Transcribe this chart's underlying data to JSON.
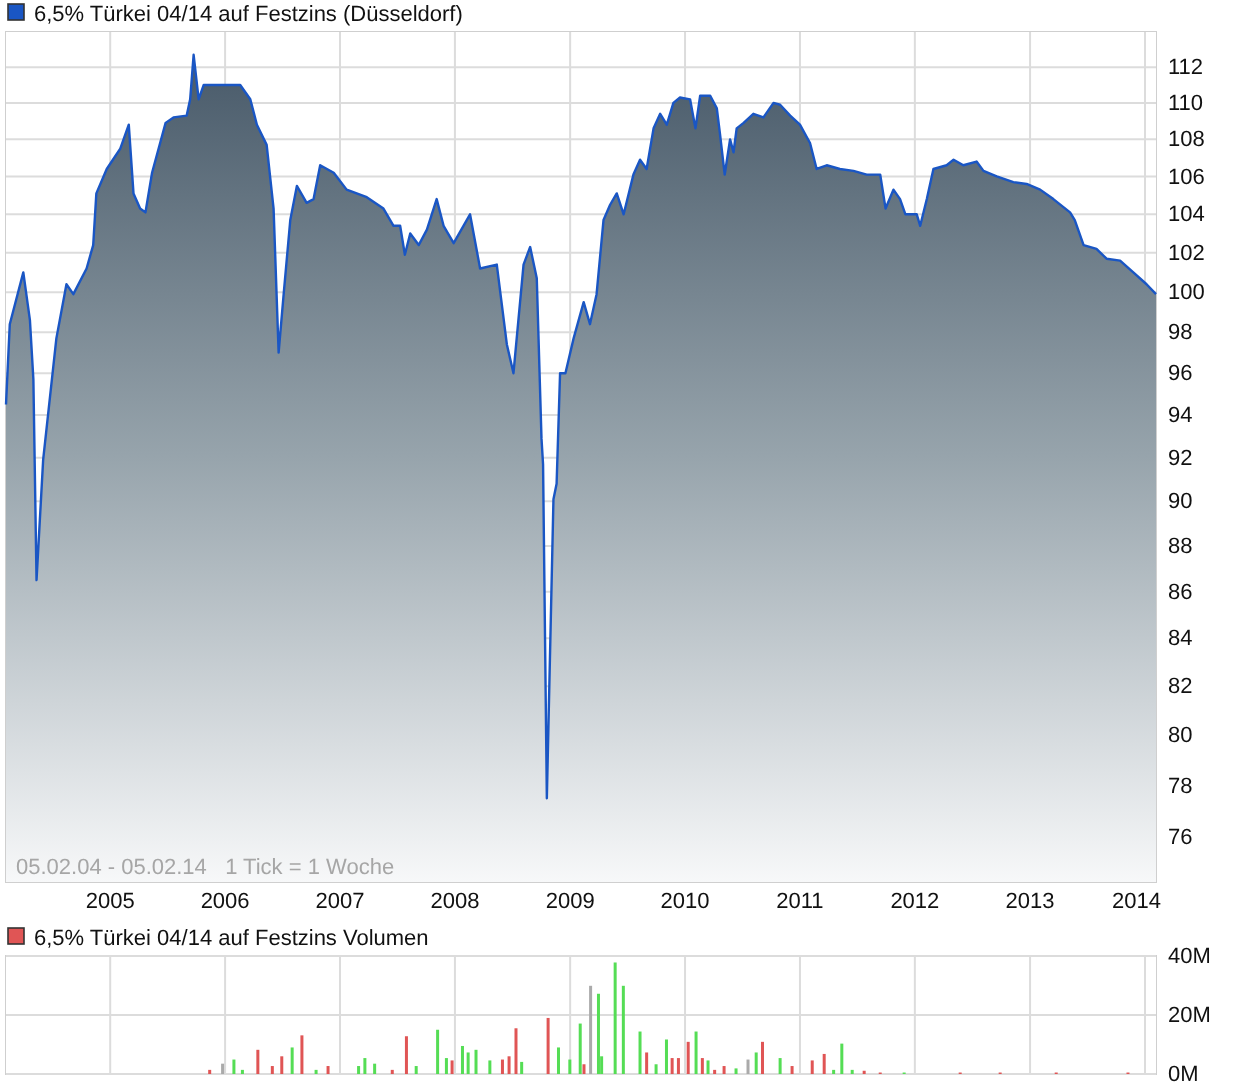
{
  "chart_data": [
    {
      "type": "area",
      "log": true,
      "grid": true,
      "legend": "top left",
      "xlim": [
        "2004-02-05",
        "2014-02-05"
      ],
      "ylim": [
        74.3,
        114
      ],
      "xticks": [
        "2005",
        "2006",
        "2007",
        "2008",
        "2009",
        "2010",
        "2011",
        "2012",
        "2013",
        "2014"
      ],
      "yticks": [
        76,
        78,
        80,
        82,
        84,
        86,
        88,
        90,
        92,
        94,
        96,
        98,
        100,
        102,
        104,
        106,
        108,
        110,
        112
      ],
      "annotations": [
        "05.02.04 - 05.02.14   1 Tick = 1 Woche"
      ],
      "x": [
        "2004-02-05",
        "2004-02-17",
        "2004-03-31",
        "2004-04-21",
        "2004-05-02",
        "2004-05-12",
        "2004-06-02",
        "2004-07-14",
        "2004-08-15",
        "2004-09-06",
        "2004-10-18",
        "2004-11-08",
        "2004-11-18",
        "2004-12-21",
        "2005-02-02",
        "2005-03-01",
        "2005-03-16",
        "2005-04-06",
        "2005-04-23",
        "2005-05-14",
        "2005-06-26",
        "2005-07-21",
        "2005-09-01",
        "2005-09-12",
        "2005-09-23",
        "2005-10-09",
        "2005-10-25",
        "2006-01-06",
        "2006-02-18",
        "2006-03-22",
        "2006-04-12",
        "2006-05-13",
        "2006-06-04",
        "2006-06-20",
        "2006-07-06",
        "2006-07-27",
        "2006-08-17",
        "2006-09-17",
        "2006-10-09",
        "2006-10-30",
        "2006-12-12",
        "2007-01-22",
        "2007-03-27",
        "2007-05-19",
        "2007-06-20",
        "2007-07-11",
        "2007-07-26",
        "2007-08-12",
        "2007-09-08",
        "2007-10-04",
        "2007-11-04",
        "2007-11-26",
        "2007-12-28",
        "2008-02-18",
        "2008-03-21",
        "2008-05-13",
        "2008-06-14",
        "2008-07-05",
        "2008-08-06",
        "2008-08-27",
        "2008-09-17",
        "2008-10-02",
        "2008-10-07",
        "2008-10-19",
        "2008-11-09",
        "2008-11-19",
        "2008-11-30",
        "2008-12-17",
        "2009-01-12",
        "2009-02-13",
        "2009-03-05",
        "2009-03-26",
        "2009-04-17",
        "2009-05-08",
        "2009-05-29",
        "2009-06-20",
        "2009-07-21",
        "2009-08-11",
        "2009-09-01",
        "2009-09-23",
        "2009-10-14",
        "2009-11-04",
        "2009-11-25",
        "2009-12-16",
        "2010-01-17",
        "2010-02-03",
        "2010-02-18",
        "2010-03-22",
        "2010-04-12",
        "2010-04-22",
        "2010-05-07",
        "2010-05-24",
        "2010-06-04",
        "2010-06-14",
        "2010-07-06",
        "2010-08-06",
        "2010-09-07",
        "2010-10-09",
        "2010-10-30",
        "2010-12-01",
        "2011-01-01",
        "2011-02-02",
        "2011-02-23",
        "2011-03-27",
        "2011-05-08",
        "2011-06-20",
        "2011-08-01",
        "2011-09-13",
        "2011-09-30",
        "2011-10-25",
        "2011-11-15",
        "2011-12-02",
        "2012-01-07",
        "2012-01-18",
        "2012-02-08",
        "2012-02-29",
        "2012-04-11",
        "2012-05-03",
        "2012-06-03",
        "2012-07-15",
        "2012-08-06",
        "2012-09-17",
        "2012-11-09",
        "2012-12-21",
        "2013-02-02",
        "2013-03-16",
        "2013-05-08",
        "2013-05-23",
        "2013-06-20",
        "2013-07-31",
        "2013-09-01",
        "2013-10-14",
        "2013-11-25",
        "2014-01-06",
        "2014-02-05"
      ],
      "series": [
        {
          "name": "6,5% Türkei 04/14 auf Festzins (Düsseldorf)",
          "color": "#1a56c4",
          "values": [
            94.5,
            98.4,
            101.0,
            98.6,
            95.7,
            86.5,
            91.9,
            97.7,
            100.4,
            99.9,
            101.2,
            102.4,
            105.1,
            106.4,
            107.5,
            108.8,
            105.1,
            104.3,
            104.1,
            106.2,
            108.9,
            109.2,
            109.3,
            110.2,
            112.7,
            110.2,
            111.0,
            111.0,
            111.0,
            110.2,
            108.8,
            107.7,
            104.3,
            97.0,
            99.9,
            103.7,
            105.5,
            104.6,
            104.8,
            106.6,
            106.2,
            105.3,
            104.9,
            104.3,
            103.4,
            103.4,
            101.9,
            103.0,
            102.4,
            103.2,
            104.8,
            103.4,
            102.5,
            104.0,
            101.2,
            101.4,
            97.4,
            96.0,
            101.4,
            102.3,
            100.7,
            92.9,
            91.7,
            77.5,
            90.1,
            90.8,
            96.0,
            96.0,
            97.7,
            99.5,
            98.4,
            99.9,
            103.7,
            104.5,
            105.1,
            104.0,
            106.1,
            106.9,
            106.4,
            108.6,
            109.4,
            108.8,
            110.0,
            110.3,
            110.2,
            108.6,
            110.4,
            110.4,
            109.7,
            108.3,
            106.1,
            108.0,
            107.3,
            108.6,
            108.9,
            109.4,
            109.2,
            110.0,
            109.9,
            109.3,
            108.8,
            107.8,
            106.4,
            106.6,
            106.4,
            106.3,
            106.1,
            106.1,
            104.3,
            105.3,
            104.8,
            104.0,
            104.0,
            103.4,
            104.8,
            106.4,
            106.6,
            106.9,
            106.6,
            106.8,
            106.3,
            106.0,
            105.7,
            105.6,
            105.3,
            104.8,
            104.1,
            103.7,
            102.4,
            102.2,
            101.7,
            101.6,
            101.0,
            100.4,
            99.9
          ]
        }
      ]
    },
    {
      "type": "bar",
      "grid": true,
      "legend": "top left",
      "tick_labels": "y",
      "xlim": [
        "2004-02-05",
        "2014-02-05"
      ],
      "ylim": [
        0,
        40
      ],
      "xticks": [
        "2005",
        "2006",
        "2007",
        "2008",
        "2009",
        "2010",
        "2011",
        "2012",
        "2013",
        "2014"
      ],
      "yticks": [
        {
          "value": 0,
          "label": "0M"
        },
        {
          "value": 20,
          "label": "20M"
        },
        {
          "value": 40,
          "label": "40M"
        }
      ],
      "x": [
        "2005-11-13",
        "2005-12-24",
        "2006-01-29",
        "2006-02-25",
        "2006-04-15",
        "2006-05-31",
        "2006-06-30",
        "2006-08-02",
        "2006-09-02",
        "2006-10-17",
        "2006-11-24",
        "2007-03-01",
        "2007-03-21",
        "2007-04-21",
        "2007-06-16",
        "2007-07-31",
        "2007-08-31",
        "2007-11-07",
        "2007-12-05",
        "2007-12-23",
        "2008-01-25",
        "2008-02-12",
        "2008-03-08",
        "2008-04-21",
        "2008-05-31",
        "2008-06-21",
        "2008-07-13",
        "2008-07-31",
        "2008-10-23",
        "2008-11-25",
        "2008-12-31",
        "2009-02-02",
        "2009-02-14",
        "2009-03-07",
        "2009-04-01",
        "2009-04-11",
        "2009-05-24",
        "2009-06-19",
        "2009-08-11",
        "2009-09-01",
        "2009-10-01",
        "2009-11-03",
        "2009-11-21",
        "2009-12-11",
        "2010-01-11",
        "2010-02-05",
        "2010-02-25",
        "2010-03-15",
        "2010-04-05",
        "2010-05-05",
        "2010-06-12",
        "2010-07-20",
        "2010-08-15",
        "2010-09-04",
        "2010-10-30",
        "2010-12-07",
        "2011-02-09",
        "2011-03-19",
        "2011-04-18",
        "2011-05-14",
        "2011-06-16",
        "2011-07-24",
        "2011-09-13",
        "2011-11-28",
        "2012-05-24",
        "2012-09-28",
        "2013-03-25",
        "2013-11-08"
      ],
      "series": [
        {
          "name": "6,5% Türkei 04/14 auf Festzins Volumen",
          "color": "#e05555",
          "values": [
            1.4,
            3.5,
            4.9,
            1.4,
            8.2,
            2.7,
            6.0,
            9.0,
            13.1,
            1.4,
            2.7,
            2.7,
            5.4,
            3.5,
            1.4,
            12.8,
            2.7,
            15.0,
            5.4,
            4.6,
            9.5,
            7.3,
            8.2,
            4.6,
            4.9,
            6.0,
            15.5,
            4.1,
            19.0,
            9.0,
            4.9,
            17.1,
            3.3,
            29.9,
            27.2,
            6.0,
            37.8,
            29.9,
            14.4,
            7.3,
            3.3,
            11.7,
            5.4,
            5.4,
            10.9,
            14.4,
            5.4,
            4.6,
            1.4,
            2.7,
            1.9,
            4.9,
            7.3,
            10.9,
            5.4,
            2.7,
            4.6,
            6.8,
            1.4,
            10.3,
            1.4,
            1.1,
            0.5,
            0.5,
            0.5,
            0.5,
            0.5,
            0.5
          ],
          "colors": [
            "#e05555",
            "#aaaaaa",
            "#55dd55",
            "#55dd55",
            "#e05555",
            "#e05555",
            "#e05555",
            "#55dd55",
            "#e05555",
            "#55dd55",
            "#e05555",
            "#55dd55",
            "#55dd55",
            "#55dd55",
            "#e05555",
            "#e05555",
            "#55dd55",
            "#55dd55",
            "#55dd55",
            "#e05555",
            "#55dd55",
            "#55dd55",
            "#55dd55",
            "#55dd55",
            "#e05555",
            "#e05555",
            "#e05555",
            "#55dd55",
            "#e05555",
            "#55dd55",
            "#55dd55",
            "#55dd55",
            "#e05555",
            "#aaaaaa",
            "#55dd55",
            "#55dd55",
            "#55dd55",
            "#55dd55",
            "#55dd55",
            "#e05555",
            "#55dd55",
            "#55dd55",
            "#e05555",
            "#e05555",
            "#e05555",
            "#55dd55",
            "#e05555",
            "#55dd55",
            "#e05555",
            "#e05555",
            "#55dd55",
            "#aaaaaa",
            "#55dd55",
            "#e05555",
            "#55dd55",
            "#e05555",
            "#e05555",
            "#e05555",
            "#55dd55",
            "#55dd55",
            "#55dd55",
            "#e05555",
            "#e05555",
            "#55dd55",
            "#e05555",
            "#e05555",
            "#e05555",
            "#e05555"
          ]
        }
      ]
    }
  ]
}
